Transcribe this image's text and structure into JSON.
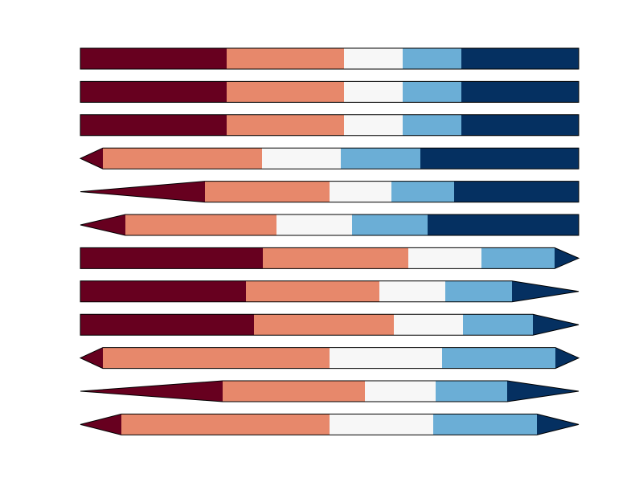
{
  "colors": {
    "c0": "#67001f",
    "c1": "#e7886b",
    "c2": "#f7f7f7",
    "c3": "#6baed6",
    "c4": "#053061",
    "outline": "#000000",
    "background": "#ffffff"
  },
  "colorbars": [
    {
      "bounds": [
        0,
        1.25,
        2.25,
        2.75,
        3.25,
        4.25
      ],
      "colors": [
        "c0",
        "c1",
        "c2",
        "c3",
        "c4"
      ],
      "extend": "neither",
      "extend_frac": 0
    },
    {
      "bounds": [
        0,
        1.25,
        2.25,
        2.75,
        3.25,
        4.25
      ],
      "colors": [
        "c0",
        "c1",
        "c2",
        "c3",
        "c4"
      ],
      "extend": "neither",
      "extend_frac": 0
    },
    {
      "bounds": [
        0,
        1.25,
        2.25,
        2.75,
        3.25,
        4.25
      ],
      "colors": [
        "c0",
        "c1",
        "c2",
        "c3",
        "c4"
      ],
      "extend": "neither",
      "extend_frac": 0
    },
    {
      "bounds": [
        1,
        3,
        4,
        5,
        7
      ],
      "colors": [
        "c1",
        "c2",
        "c3",
        "c4"
      ],
      "extend": "min",
      "extend_frac": 0.05,
      "min_color": "c0"
    },
    {
      "bounds": [
        1,
        3,
        4,
        5,
        7
      ],
      "colors": [
        "c1",
        "c2",
        "c3",
        "c4"
      ],
      "extend": "min",
      "extend_frac": 0.25,
      "min_color": "c0"
    },
    {
      "bounds": [
        1,
        3,
        4,
        5,
        7
      ],
      "colors": [
        "c1",
        "c2",
        "c3",
        "c4"
      ],
      "extend": "min",
      "extend_frac": 0.1,
      "min_color": "c0"
    },
    {
      "bounds": [
        0,
        2.5,
        4.5,
        5.5,
        6.5
      ],
      "colors": [
        "c0",
        "c1",
        "c2",
        "c3"
      ],
      "extend": "max",
      "extend_frac": 0.05,
      "max_color": "c4"
    },
    {
      "bounds": [
        0,
        2.5,
        4.5,
        5.5,
        6.5
      ],
      "colors": [
        "c0",
        "c1",
        "c2",
        "c3"
      ],
      "extend": "max",
      "extend_frac": 0.15,
      "max_color": "c4"
    },
    {
      "bounds": [
        0,
        2.5,
        4.5,
        5.5,
        6.5
      ],
      "colors": [
        "c0",
        "c1",
        "c2",
        "c3"
      ],
      "extend": "max",
      "extend_frac": 0.1,
      "max_color": "c4"
    },
    {
      "bounds": [
        0,
        2,
        3,
        4
      ],
      "colors": [
        "c1",
        "c2",
        "c3"
      ],
      "extend": "both",
      "extend_frac": 0.05,
      "min_color": "c0",
      "max_color": "c4"
    },
    {
      "bounds": [
        0,
        2,
        3,
        4,
        5
      ],
      "colors": [
        "c1",
        "c2",
        "c3",
        "c4"
      ],
      "extend": "both",
      "extend_frac": 0.25,
      "min_color": "c0",
      "max_color": "c4",
      "note_split": true
    },
    {
      "bounds": [
        0,
        2,
        3,
        4
      ],
      "colors": [
        "c1",
        "c2",
        "c3"
      ],
      "extend": "both",
      "extend_frac": 0.1,
      "min_color": "c0",
      "max_color": "c4"
    }
  ]
}
